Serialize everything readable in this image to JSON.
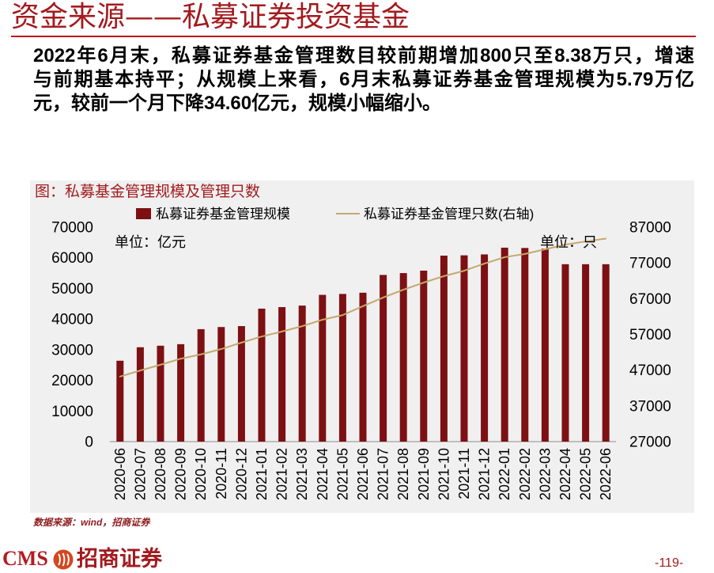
{
  "theme": {
    "accent": "#a31a1e",
    "rule": "#c0141c",
    "chart_bg": "#f0f0f0"
  },
  "header": {
    "title": "资金来源——私募证券投资基金"
  },
  "body": {
    "lines": [
      "2022年6月末，私募证券基金管理数目较前期增加800只至8.38万只，增速",
      "与前期基本持平；从规模上来看，6月末私募证券基金管理规模为5.79万亿",
      "元，较前一个月下降34.60亿元，规模小幅缩小。"
    ]
  },
  "chart_data": {
    "type": "bar",
    "title": "图：私募基金管理规模及管理只数",
    "categories": [
      "2020-06",
      "2020-07",
      "2020-08",
      "2020-09",
      "2020-10",
      "2020-11",
      "2020-12",
      "2021-01",
      "2021-02",
      "2021-03",
      "2021-04",
      "2021-05",
      "2021-06",
      "2021-07",
      "2021-08",
      "2021-09",
      "2021-10",
      "2021-11",
      "2021-12",
      "2022-01",
      "2022-02",
      "2022-03",
      "2022-04",
      "2022-05",
      "2022-06"
    ],
    "series": [
      {
        "name": "私募证券基金管理规模",
        "type": "bar",
        "axis": "left",
        "color": "#7d1013",
        "values": [
          26400,
          30800,
          31300,
          31800,
          36700,
          37400,
          37700,
          43400,
          43900,
          44400,
          47900,
          48200,
          48600,
          54400,
          55000,
          55800,
          60700,
          60800,
          61100,
          63300,
          63200,
          63000,
          57900,
          57900,
          57900
        ]
      },
      {
        "name": "私募证券基金管理只数(右轴)",
        "type": "line",
        "axis": "right",
        "color": "#c5a86e",
        "values": [
          45200,
          46900,
          48500,
          50200,
          51400,
          52900,
          54700,
          56400,
          57800,
          59300,
          61100,
          62400,
          64900,
          67300,
          69500,
          71500,
          73300,
          74800,
          76800,
          78600,
          79500,
          80800,
          82100,
          83000,
          83800
        ]
      }
    ],
    "y_left": {
      "unit_label": "单位：亿元",
      "range": [
        0,
        70000
      ],
      "ticks": [
        0,
        10000,
        20000,
        30000,
        40000,
        50000,
        60000,
        70000
      ]
    },
    "y_right": {
      "unit_label": "单位：只",
      "range": [
        27000,
        87000
      ],
      "ticks": [
        27000,
        37000,
        47000,
        57000,
        67000,
        77000,
        87000
      ]
    },
    "legend": "top",
    "grid": false
  },
  "source": "数据来源：wind，招商证券",
  "footer": {
    "logo_wordmark": "CMS",
    "logo_icon": "cms-logo-icon",
    "brand": "招商证券",
    "page": "-119-"
  }
}
